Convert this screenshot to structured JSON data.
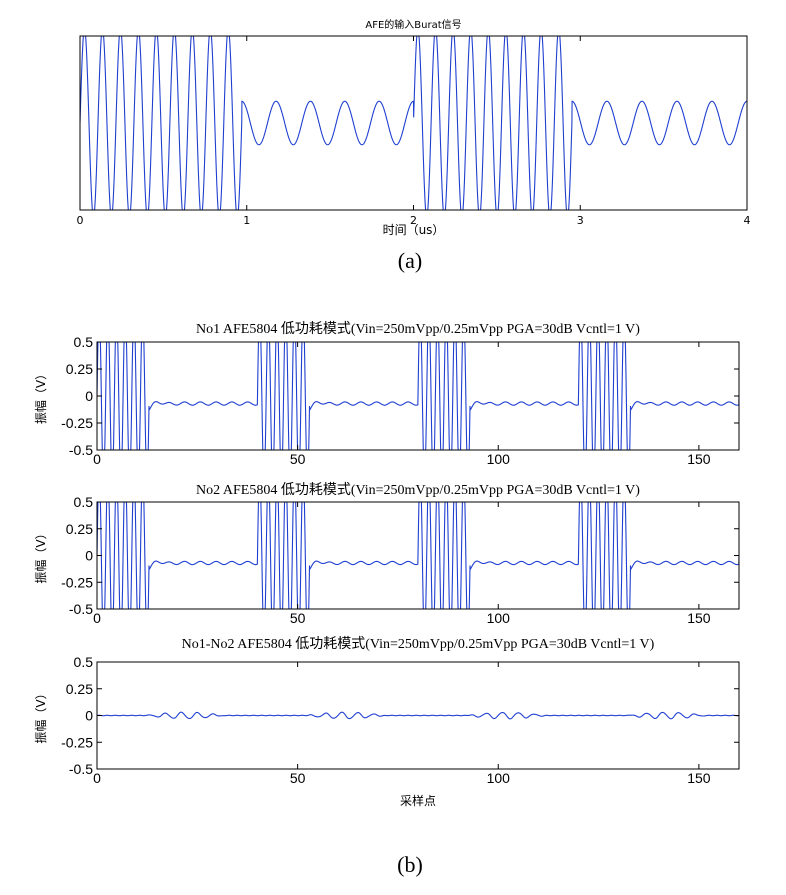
{
  "figure": {
    "caption_a": "(a)",
    "caption_b": "(b)"
  },
  "chart_data": [
    {
      "type": "line",
      "title": "AFE的输入Burat信号",
      "xlabel": "时间（us）",
      "ylabel": "",
      "xlim": [
        0,
        4
      ],
      "ylim": [
        -1,
        1
      ],
      "xticks": [
        "0",
        "1",
        "2",
        "3",
        "4"
      ],
      "yticks": [],
      "grid": false,
      "line_color": "#1f3fd0",
      "series": [
        {
          "segments": [
            {
              "kind": "burst",
              "x_start": 0.0,
              "x_end": 0.97,
              "cycles": 9,
              "amplitude": 1.0
            },
            {
              "kind": "sine",
              "x_start": 0.97,
              "x_end": 2.0,
              "cycles": 5,
              "amplitude": 0.25,
              "center": 0.0
            },
            {
              "kind": "burst",
              "x_start": 2.0,
              "x_end": 2.95,
              "cycles": 9,
              "amplitude": 1.0
            },
            {
              "kind": "sine",
              "x_start": 2.95,
              "x_end": 4.0,
              "cycles": 5,
              "amplitude": 0.25,
              "center": 0.0
            }
          ]
        }
      ]
    },
    {
      "type": "line",
      "title": "No1 AFE5804 低功耗模式(Vin=250mVpp/0.25mVpp PGA=30dB Vcntl=1 V)",
      "xlabel": "",
      "ylabel": "振幅（V）",
      "xlim": [
        0,
        160
      ],
      "ylim": [
        -0.5,
        0.5
      ],
      "xticks": [
        "0",
        "50",
        "100",
        "150"
      ],
      "yticks": [
        "0.5",
        "0.25",
        "0",
        "-0.25",
        "-0.5"
      ],
      "grid": false,
      "line_color": "#1f3fd0",
      "series": [
        {
          "period": 40,
          "burst_len": 13,
          "burst_cycles": 6,
          "burst_amplitude": 0.5,
          "quiet_level": -0.07,
          "quiet_ripple": 0.015,
          "x_range": [
            0,
            160
          ]
        }
      ]
    },
    {
      "type": "line",
      "title": "No2 AFE5804 低功耗模式(Vin=250mVpp/0.25mVpp PGA=30dB Vcntl=1 V)",
      "xlabel": "",
      "ylabel": "振幅（V）",
      "xlim": [
        0,
        160
      ],
      "ylim": [
        -0.5,
        0.5
      ],
      "xticks": [
        "0",
        "50",
        "100",
        "150"
      ],
      "yticks": [
        "0.5",
        "0.25",
        "0",
        "-0.25",
        "-0.5"
      ],
      "grid": false,
      "line_color": "#1f3fd0",
      "series": [
        {
          "period": 40,
          "burst_len": 13,
          "burst_cycles": 6,
          "burst_amplitude": 0.5,
          "quiet_level": -0.07,
          "quiet_ripple": 0.015,
          "x_range": [
            0,
            160
          ]
        }
      ]
    },
    {
      "type": "line",
      "title": "No1-No2 AFE5804 低功耗模式(Vin=250mVpp/0.25mVpp PGA=30dB Vcntl=1 V)",
      "xlabel": "采样点",
      "ylabel": "振幅（V）",
      "xlim": [
        0,
        160
      ],
      "ylim": [
        -0.5,
        0.5
      ],
      "xticks": [
        "0",
        "50",
        "100",
        "150"
      ],
      "yticks": [
        "0.5",
        "0.25",
        "0",
        "-0.25",
        "-0.5"
      ],
      "grid": false,
      "line_color": "#1f3fd0",
      "series": [
        {
          "ripple_windows": [
            [
              12,
              32
            ],
            [
              52,
              72
            ],
            [
              92,
              112
            ],
            [
              132,
              152
            ]
          ],
          "ripple_amplitude": 0.03,
          "x_range": [
            0,
            160
          ]
        }
      ]
    }
  ]
}
